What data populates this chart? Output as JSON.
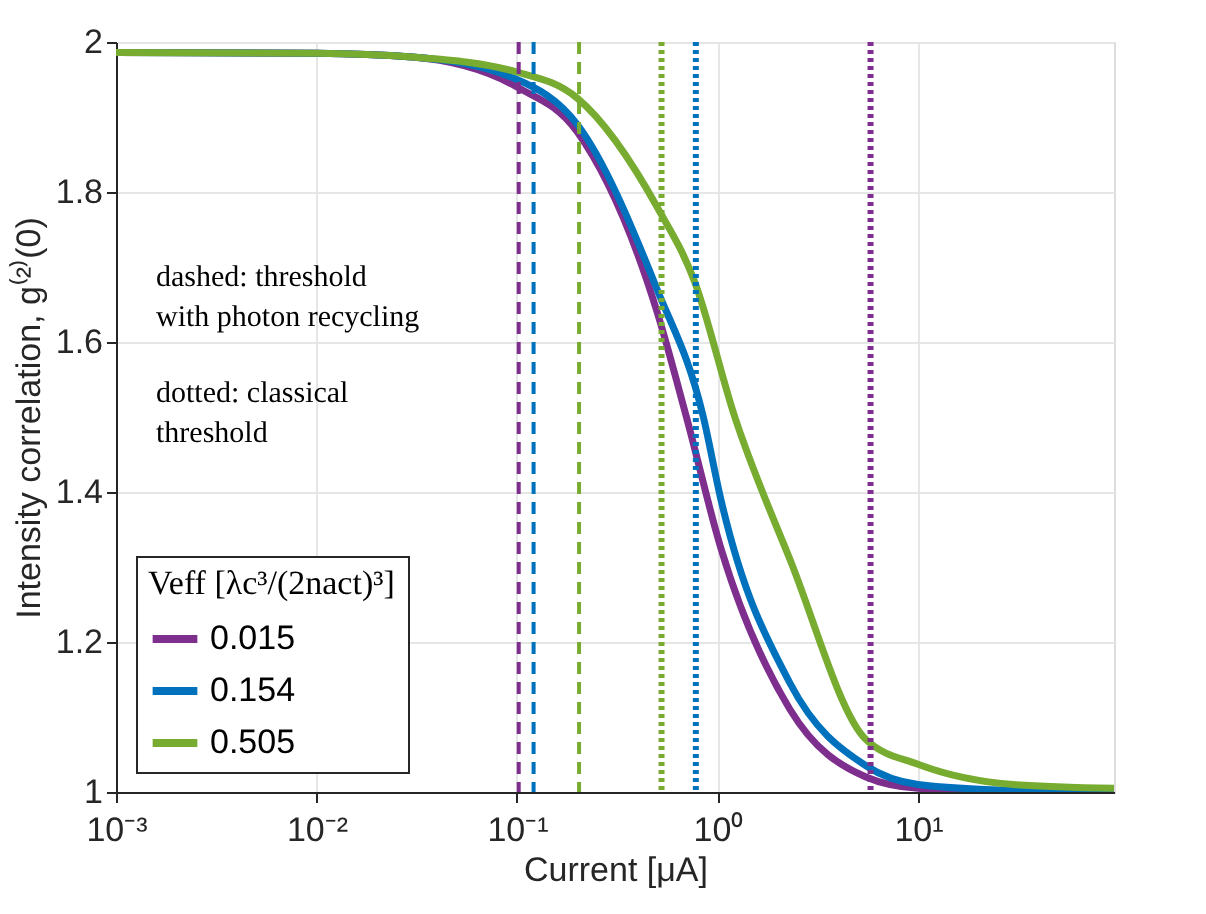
{
  "chart_data": {
    "type": "line",
    "xlabel": "Current [μA]",
    "ylabel": "Intensity correlation, g⁽²⁾(0)",
    "legend_title": "Veff [λc³/(2nact)³]",
    "log": "x",
    "grid": true,
    "legend": "bottom left",
    "line_style": "solid",
    "marker": "none",
    "xlim": [
      0.001,
      95
    ],
    "ylim": [
      1,
      2
    ],
    "xticks": [
      {
        "value": 0.001,
        "label": "10⁻³"
      },
      {
        "value": 0.01,
        "label": "10⁻²"
      },
      {
        "value": 0.1,
        "label": "10⁻¹"
      },
      {
        "value": 1,
        "label": "10⁰"
      },
      {
        "value": 10,
        "label": "10¹"
      }
    ],
    "yticks": [
      1,
      1.2,
      1.4,
      1.6,
      1.8,
      2
    ],
    "series": [
      {
        "name": "0.015",
        "color": "#7e2f8e",
        "x": [
          0.001,
          0.01,
          0.03,
          0.1,
          0.2,
          0.5,
          0.7,
          1.04,
          2.3,
          5.5,
          10,
          30,
          95
        ],
        "values": [
          1.986,
          1.985,
          1.98,
          1.94,
          1.88,
          1.64,
          1.5,
          1.325,
          1.11,
          1.02,
          1.005,
          1.001,
          1.0
        ]
      },
      {
        "name": "0.154",
        "color": "#0072bd",
        "x": [
          0.001,
          0.01,
          0.03,
          0.1,
          0.2,
          0.5,
          0.85,
          1.04,
          2.3,
          5.5,
          10,
          30,
          95
        ],
        "values": [
          1.986,
          1.985,
          1.98,
          1.95,
          1.89,
          1.67,
          1.5,
          1.39,
          1.145,
          1.035,
          1.01,
          1.002,
          1.0
        ]
      },
      {
        "name": "0.505",
        "color": "#77ac30",
        "x": [
          0.001,
          0.01,
          0.03,
          0.1,
          0.2,
          0.5,
          0.77,
          1.22,
          2.3,
          5.5,
          10,
          30,
          95
        ],
        "values": [
          1.986,
          1.985,
          1.98,
          1.96,
          1.925,
          1.78,
          1.68,
          1.5,
          1.31,
          1.07,
          1.037,
          1.01,
          1.005
        ]
      }
    ],
    "ref_lines": [
      {
        "axis": "x",
        "value": 0.102,
        "color": "#7e2f8e",
        "line_style": "dashed"
      },
      {
        "axis": "x",
        "value": 0.121,
        "color": "#0072bd",
        "line_style": "dashed"
      },
      {
        "axis": "x",
        "value": 0.204,
        "color": "#77ac30",
        "line_style": "dashed"
      },
      {
        "axis": "x",
        "value": 0.526,
        "color": "#77ac30",
        "line_style": "dotted"
      },
      {
        "axis": "x",
        "value": 0.78,
        "color": "#0072bd",
        "line_style": "dotted"
      },
      {
        "axis": "x",
        "value": 5.8,
        "color": "#7e2f8e",
        "line_style": "dotted"
      }
    ],
    "annotations": [
      "dashed: threshold\nwith photon recycling",
      "dotted: classical\nthreshold"
    ]
  }
}
